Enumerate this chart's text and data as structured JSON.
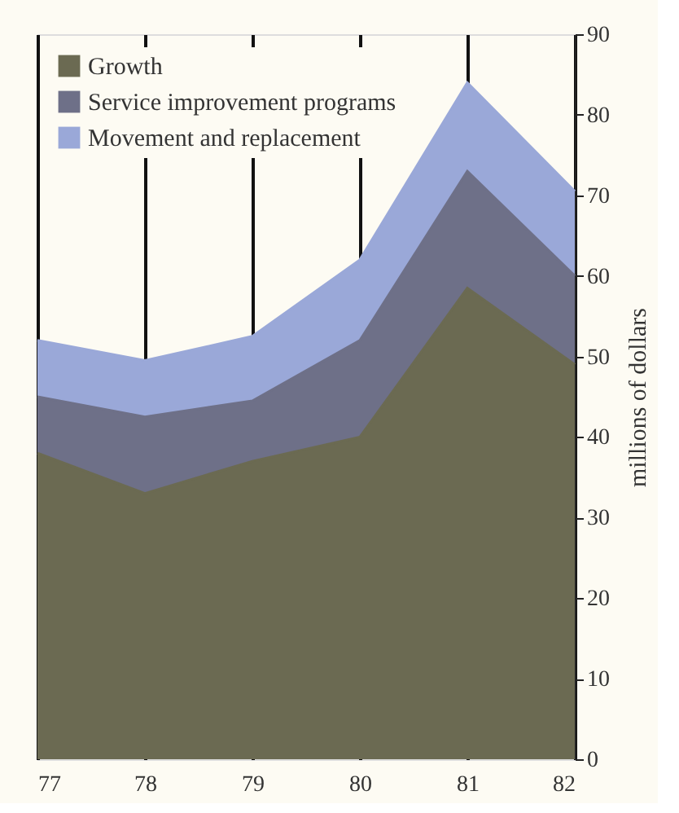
{
  "chart_data": {
    "type": "area",
    "stacked": true,
    "ylabel": "millions of dollars",
    "x": [
      77,
      78,
      79,
      80,
      81,
      82
    ],
    "xlim": [
      77,
      82
    ],
    "xticks": [
      77,
      78,
      79,
      80,
      81,
      82
    ],
    "ylim": [
      0,
      90
    ],
    "yticks": [
      0,
      10,
      20,
      30,
      40,
      50,
      60,
      70,
      80,
      90
    ],
    "grid": "x",
    "legend": "top left",
    "series": [
      {
        "name": "Growth",
        "color": "#6b6a52",
        "values": [
          38,
          33,
          37,
          40,
          58.5,
          49
        ]
      },
      {
        "name": "Service improvement programs",
        "color": "#6e7088",
        "values": [
          7,
          9.5,
          7.5,
          12,
          14.5,
          11
        ]
      },
      {
        "name": "Movement and replacement",
        "color": "#9aa8d8",
        "values": [
          7,
          7,
          8,
          10,
          11,
          10.5
        ]
      }
    ]
  }
}
